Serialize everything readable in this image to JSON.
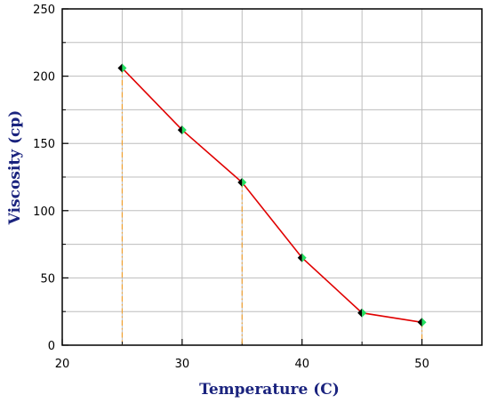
{
  "chart_data": {
    "type": "line",
    "title": "",
    "xlabel": "Temperature (C)",
    "ylabel": "Viscosity (cp)",
    "xlim": [
      20,
      55
    ],
    "ylim": [
      0,
      250
    ],
    "x_ticks": [
      20,
      30,
      40,
      50
    ],
    "y_ticks": [
      0,
      50,
      100,
      150,
      200,
      250
    ],
    "grid": true,
    "legend": "none",
    "series": [
      {
        "x": [
          25,
          30,
          35,
          40,
          45,
          50
        ],
        "y": [
          206,
          160,
          121,
          65,
          24,
          17
        ],
        "line_color": "#e00000",
        "marker": "diamond",
        "marker_colors": [
          "#000000",
          "#22e060"
        ]
      }
    ],
    "drop_lines": {
      "x": [
        25,
        35,
        50
      ],
      "style": "dash-dot",
      "color": "#f0a030"
    }
  }
}
